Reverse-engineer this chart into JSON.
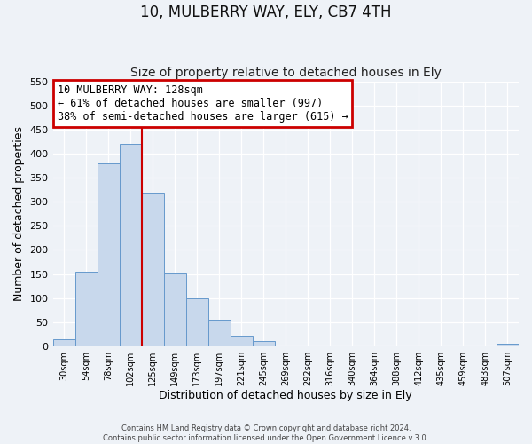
{
  "title": "10, MULBERRY WAY, ELY, CB7 4TH",
  "subtitle": "Size of property relative to detached houses in Ely",
  "xlabel": "Distribution of detached houses by size in Ely",
  "ylabel": "Number of detached properties",
  "bin_labels": [
    "30sqm",
    "54sqm",
    "78sqm",
    "102sqm",
    "125sqm",
    "149sqm",
    "173sqm",
    "197sqm",
    "221sqm",
    "245sqm",
    "269sqm",
    "292sqm",
    "316sqm",
    "340sqm",
    "364sqm",
    "388sqm",
    "412sqm",
    "435sqm",
    "459sqm",
    "483sqm",
    "507sqm"
  ],
  "bar_values": [
    15,
    155,
    380,
    420,
    320,
    152,
    100,
    55,
    22,
    10,
    0,
    0,
    0,
    0,
    0,
    0,
    0,
    0,
    0,
    0,
    5
  ],
  "bar_color": "#c8d8ec",
  "bar_edge_color": "#6699cc",
  "property_line_color": "#cc0000",
  "property_line_index": 4,
  "ylim": [
    0,
    550
  ],
  "yticks": [
    0,
    50,
    100,
    150,
    200,
    250,
    300,
    350,
    400,
    450,
    500,
    550
  ],
  "annotation_title": "10 MULBERRY WAY: 128sqm",
  "annotation_line1": "← 61% of detached houses are smaller (997)",
  "annotation_line2": "38% of semi-detached houses are larger (615) →",
  "annotation_box_color": "#cc0000",
  "footer_line1": "Contains HM Land Registry data © Crown copyright and database right 2024.",
  "footer_line2": "Contains public sector information licensed under the Open Government Licence v.3.0.",
  "background_color": "#eef2f7",
  "grid_color": "#ffffff",
  "title_fontsize": 12,
  "subtitle_fontsize": 10,
  "ylabel_text": "Number of detached properties"
}
